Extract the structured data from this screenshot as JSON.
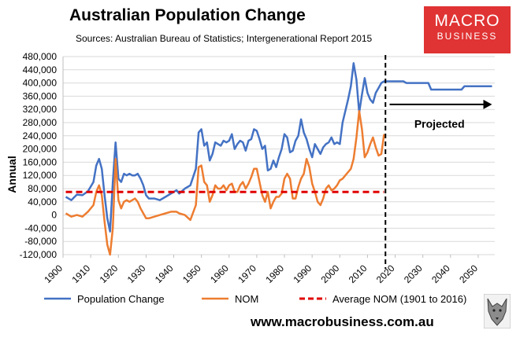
{
  "header": {
    "title": "Australian Population Change",
    "subtitle": "Sources: Australian Bureau of Statistics; Intergenerational Report 2015"
  },
  "logo": {
    "line1": "MACRO",
    "line2": "BUSINESS",
    "color": "#e03333"
  },
  "footer": {
    "website": "www.macrobusiness.com.au"
  },
  "colors": {
    "population": "#4472c4",
    "nom": "#ed7d31",
    "average": "#e00000",
    "grid": "#d9d9d9"
  },
  "chart_data": {
    "type": "line",
    "title": "Australian Population Change",
    "subtitle": "Sources: Australian Bureau of Statistics; Intergenerational Report 2015",
    "ylabel": "Annual",
    "xlabel": "",
    "ylim": [
      -120000,
      480000
    ],
    "xlim": [
      1900,
      2056
    ],
    "grid": true,
    "legend_position": "bottom",
    "x_ticks": [
      1900,
      1910,
      1920,
      1930,
      1940,
      1950,
      1960,
      1970,
      1980,
      1990,
      2000,
      2010,
      2020,
      2030,
      2040,
      2050
    ],
    "y_ticks": [
      -120000,
      -80000,
      -40000,
      0,
      40000,
      80000,
      120000,
      160000,
      200000,
      240000,
      280000,
      320000,
      360000,
      400000,
      440000,
      480000
    ],
    "y_tick_labels": [
      "-120,000",
      "-80,000",
      "-40,000",
      "0",
      "40,000",
      "80,000",
      "120,000",
      "160,000",
      "200,000",
      "240,000",
      "280,000",
      "320,000",
      "360,000",
      "400,000",
      "440,000",
      "480,000"
    ],
    "series": [
      {
        "name": "Population Change",
        "color": "#4472c4",
        "points": [
          [
            1901,
            55000
          ],
          [
            1903,
            45000
          ],
          [
            1905,
            62000
          ],
          [
            1907,
            60000
          ],
          [
            1909,
            72000
          ],
          [
            1911,
            100000
          ],
          [
            1912,
            150000
          ],
          [
            1913,
            170000
          ],
          [
            1914,
            140000
          ],
          [
            1915,
            60000
          ],
          [
            1916,
            -10000
          ],
          [
            1917,
            -50000
          ],
          [
            1918,
            100000
          ],
          [
            1919,
            220000
          ],
          [
            1920,
            110000
          ],
          [
            1921,
            100000
          ],
          [
            1922,
            125000
          ],
          [
            1923,
            120000
          ],
          [
            1924,
            125000
          ],
          [
            1925,
            120000
          ],
          [
            1926,
            120000
          ],
          [
            1927,
            125000
          ],
          [
            1928,
            110000
          ],
          [
            1929,
            90000
          ],
          [
            1930,
            60000
          ],
          [
            1931,
            50000
          ],
          [
            1933,
            50000
          ],
          [
            1935,
            45000
          ],
          [
            1937,
            55000
          ],
          [
            1939,
            65000
          ],
          [
            1941,
            75000
          ],
          [
            1942,
            65000
          ],
          [
            1944,
            80000
          ],
          [
            1946,
            90000
          ],
          [
            1948,
            140000
          ],
          [
            1949,
            250000
          ],
          [
            1950,
            260000
          ],
          [
            1951,
            210000
          ],
          [
            1952,
            220000
          ],
          [
            1953,
            165000
          ],
          [
            1954,
            185000
          ],
          [
            1955,
            220000
          ],
          [
            1956,
            215000
          ],
          [
            1957,
            210000
          ],
          [
            1958,
            225000
          ],
          [
            1959,
            220000
          ],
          [
            1960,
            225000
          ],
          [
            1961,
            245000
          ],
          [
            1962,
            200000
          ],
          [
            1963,
            215000
          ],
          [
            1964,
            225000
          ],
          [
            1965,
            220000
          ],
          [
            1966,
            195000
          ],
          [
            1967,
            225000
          ],
          [
            1968,
            230000
          ],
          [
            1969,
            260000
          ],
          [
            1970,
            255000
          ],
          [
            1971,
            230000
          ],
          [
            1972,
            200000
          ],
          [
            1973,
            210000
          ],
          [
            1974,
            135000
          ],
          [
            1975,
            140000
          ],
          [
            1976,
            165000
          ],
          [
            1977,
            145000
          ],
          [
            1978,
            175000
          ],
          [
            1979,
            200000
          ],
          [
            1980,
            245000
          ],
          [
            1981,
            235000
          ],
          [
            1982,
            190000
          ],
          [
            1983,
            195000
          ],
          [
            1984,
            225000
          ],
          [
            1985,
            240000
          ],
          [
            1986,
            290000
          ],
          [
            1987,
            250000
          ],
          [
            1988,
            230000
          ],
          [
            1989,
            200000
          ],
          [
            1990,
            175000
          ],
          [
            1991,
            215000
          ],
          [
            1992,
            200000
          ],
          [
            1993,
            185000
          ],
          [
            1994,
            205000
          ],
          [
            1995,
            215000
          ],
          [
            1996,
            220000
          ],
          [
            1997,
            235000
          ],
          [
            1998,
            215000
          ],
          [
            1999,
            220000
          ],
          [
            2000,
            215000
          ],
          [
            2001,
            280000
          ],
          [
            2003,
            350000
          ],
          [
            2004,
            390000
          ],
          [
            2005,
            460000
          ],
          [
            2006,
            410000
          ],
          [
            2007,
            310000
          ],
          [
            2008,
            365000
          ],
          [
            2009,
            415000
          ],
          [
            2010,
            370000
          ],
          [
            2011,
            350000
          ],
          [
            2012,
            340000
          ],
          [
            2013,
            370000
          ],
          [
            2014,
            385000
          ],
          [
            2015,
            400000
          ],
          [
            2016,
            405000
          ],
          [
            2023,
            405000
          ],
          [
            2024,
            400000
          ],
          [
            2032,
            400000
          ],
          [
            2033,
            380000
          ],
          [
            2040,
            380000
          ],
          [
            2044,
            380000
          ],
          [
            2045,
            390000
          ],
          [
            2055,
            390000
          ]
        ]
      },
      {
        "name": "NOM",
        "color": "#ed7d31",
        "points": [
          [
            1901,
            5000
          ],
          [
            1903,
            -5000
          ],
          [
            1905,
            0
          ],
          [
            1907,
            -5000
          ],
          [
            1909,
            10000
          ],
          [
            1911,
            30000
          ],
          [
            1912,
            70000
          ],
          [
            1913,
            90000
          ],
          [
            1914,
            60000
          ],
          [
            1915,
            -20000
          ],
          [
            1916,
            -90000
          ],
          [
            1917,
            -120000
          ],
          [
            1918,
            -40000
          ],
          [
            1919,
            170000
          ],
          [
            1920,
            45000
          ],
          [
            1921,
            20000
          ],
          [
            1922,
            40000
          ],
          [
            1923,
            45000
          ],
          [
            1924,
            40000
          ],
          [
            1925,
            45000
          ],
          [
            1926,
            50000
          ],
          [
            1927,
            40000
          ],
          [
            1928,
            20000
          ],
          [
            1929,
            5000
          ],
          [
            1930,
            -10000
          ],
          [
            1931,
            -10000
          ],
          [
            1933,
            -5000
          ],
          [
            1935,
            0
          ],
          [
            1937,
            5000
          ],
          [
            1939,
            10000
          ],
          [
            1941,
            10000
          ],
          [
            1942,
            5000
          ],
          [
            1944,
            0
          ],
          [
            1946,
            -15000
          ],
          [
            1948,
            30000
          ],
          [
            1949,
            145000
          ],
          [
            1950,
            150000
          ],
          [
            1951,
            100000
          ],
          [
            1952,
            90000
          ],
          [
            1953,
            40000
          ],
          [
            1954,
            60000
          ],
          [
            1955,
            90000
          ],
          [
            1956,
            80000
          ],
          [
            1957,
            80000
          ],
          [
            1958,
            90000
          ],
          [
            1959,
            75000
          ],
          [
            1960,
            90000
          ],
          [
            1961,
            95000
          ],
          [
            1962,
            70000
          ],
          [
            1963,
            70000
          ],
          [
            1964,
            90000
          ],
          [
            1965,
            100000
          ],
          [
            1966,
            80000
          ],
          [
            1967,
            95000
          ],
          [
            1968,
            115000
          ],
          [
            1969,
            140000
          ],
          [
            1970,
            140000
          ],
          [
            1971,
            100000
          ],
          [
            1972,
            60000
          ],
          [
            1973,
            40000
          ],
          [
            1974,
            70000
          ],
          [
            1975,
            20000
          ],
          [
            1976,
            40000
          ],
          [
            1977,
            55000
          ],
          [
            1978,
            55000
          ],
          [
            1979,
            65000
          ],
          [
            1980,
            110000
          ],
          [
            1981,
            125000
          ],
          [
            1982,
            110000
          ],
          [
            1983,
            50000
          ],
          [
            1984,
            50000
          ],
          [
            1985,
            85000
          ],
          [
            1986,
            110000
          ],
          [
            1987,
            125000
          ],
          [
            1988,
            170000
          ],
          [
            1989,
            145000
          ],
          [
            1990,
            95000
          ],
          [
            1991,
            70000
          ],
          [
            1992,
            40000
          ],
          [
            1993,
            30000
          ],
          [
            1994,
            50000
          ],
          [
            1995,
            80000
          ],
          [
            1996,
            90000
          ],
          [
            1997,
            75000
          ],
          [
            1998,
            80000
          ],
          [
            1999,
            90000
          ],
          [
            2000,
            105000
          ],
          [
            2001,
            110000
          ],
          [
            2002,
            120000
          ],
          [
            2003,
            130000
          ],
          [
            2004,
            140000
          ],
          [
            2005,
            170000
          ],
          [
            2006,
            235000
          ],
          [
            2007,
            315000
          ],
          [
            2008,
            260000
          ],
          [
            2009,
            175000
          ],
          [
            2010,
            190000
          ],
          [
            2011,
            215000
          ],
          [
            2012,
            235000
          ],
          [
            2013,
            205000
          ],
          [
            2014,
            180000
          ],
          [
            2015,
            185000
          ],
          [
            2016,
            245000
          ]
        ]
      },
      {
        "name": "Average NOM (1901 to 2016)",
        "color": "#e00000",
        "dashed": true,
        "points": [
          [
            1901,
            70000
          ],
          [
            2016,
            70000
          ]
        ]
      }
    ],
    "divider": {
      "x": 2016.5,
      "style": "dashed",
      "color": "#000000"
    },
    "annotation": {
      "text": "Projected",
      "arrow_from_x": 2018,
      "arrow_to_x": 2055,
      "arrow_y": 335000,
      "text_x": 2036,
      "text_y": 265000
    }
  }
}
